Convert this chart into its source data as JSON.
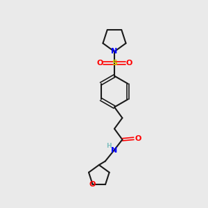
{
  "background_color": "#eaeaea",
  "bond_color": "#1a1a1a",
  "N_color": "#0000ff",
  "O_color": "#ff0000",
  "S_color": "#cccc00",
  "H_color": "#7fbfbf",
  "figsize": [
    3.0,
    3.0
  ],
  "dpi": 100,
  "xlim": [
    0,
    10
  ],
  "ylim": [
    0,
    10
  ]
}
